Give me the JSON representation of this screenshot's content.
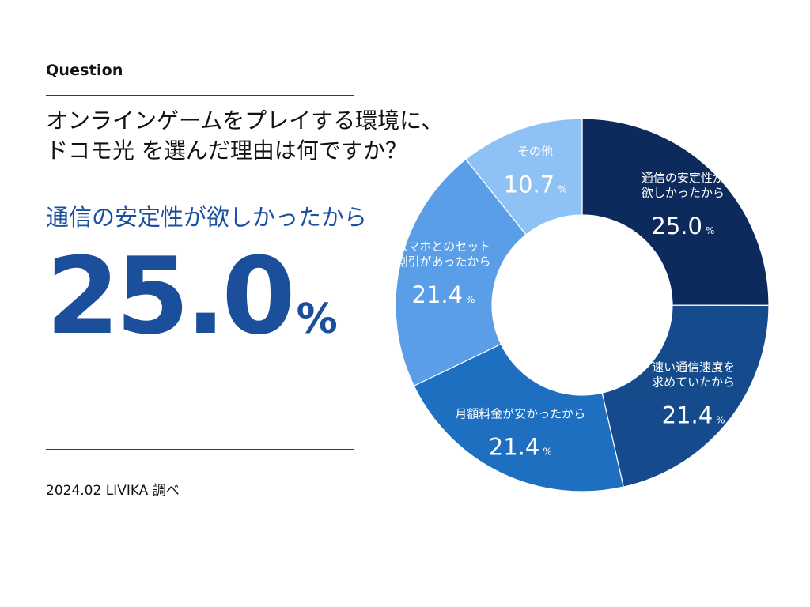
{
  "question_label": "Question",
  "question_lines": [
    "オンラインゲームをプレイする環境に、",
    "ドコモ光 を選んだ理由は何ですか？"
  ],
  "headline": {
    "label": "通信の安定性が欲しかったから",
    "value": "25.0",
    "unit": "%",
    "color": "#1b4f9c"
  },
  "source_note": "2024.02 LIVIKA 調べ",
  "chart_data": {
    "type": "pie",
    "subtype": "donut",
    "title": "",
    "unit": "%",
    "start_angle_deg": 0,
    "direction": "clockwise",
    "slices": [
      {
        "label_lines": [
          "通信の安定性が",
          "欲しかったから"
        ],
        "value": 25.0,
        "display": "25.0",
        "color": "#0c2a5c"
      },
      {
        "label_lines": [
          "速い通信速度を",
          "求めていたから"
        ],
        "value": 21.4,
        "display": "21.4",
        "color": "#154b8c"
      },
      {
        "label_lines": [
          "月額料金が安かったから"
        ],
        "value": 21.4,
        "display": "21.4",
        "color": "#1f6fc0"
      },
      {
        "label_lines": [
          "スマホとのセット",
          "割引があったから"
        ],
        "value": 21.4,
        "display": "21.4",
        "color": "#5b9ee8"
      },
      {
        "label_lines": [
          "その他"
        ],
        "value": 10.7,
        "display": "10.7",
        "color": "#8ec2f4"
      }
    ]
  }
}
